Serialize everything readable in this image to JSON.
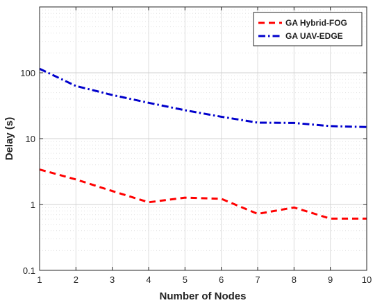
{
  "chart_data": {
    "type": "line",
    "title": "",
    "xlabel": "Number of Nodes",
    "ylabel": "Delay (s)",
    "y_scale": "log",
    "xlim": [
      1,
      10
    ],
    "ylim": [
      0.1,
      1000
    ],
    "x": [
      1,
      2,
      3,
      4,
      5,
      6,
      7,
      8,
      9,
      10
    ],
    "x_tick_labels": [
      "1",
      "2",
      "3",
      "4",
      "5",
      "6",
      "7",
      "8",
      "9",
      "10"
    ],
    "y_tick_values": [
      0.1,
      1,
      10,
      100
    ],
    "y_tick_labels": [
      "0.1",
      "1",
      "10",
      "100"
    ],
    "grid": true,
    "legend_position": "top-right",
    "series": [
      {
        "name": "GA Hybrid-FOG",
        "color": "#ff0000",
        "line_style": "dashed",
        "values": [
          3.4,
          2.4,
          1.6,
          1.08,
          1.27,
          1.22,
          0.72,
          0.9,
          0.61,
          0.61
        ]
      },
      {
        "name": "GA UAV-EDGE",
        "color": "#0000cc",
        "line_style": "dash-dot",
        "values": [
          115,
          63,
          46,
          35,
          27,
          21.5,
          17.5,
          17.3,
          15.5,
          15
        ]
      }
    ]
  }
}
